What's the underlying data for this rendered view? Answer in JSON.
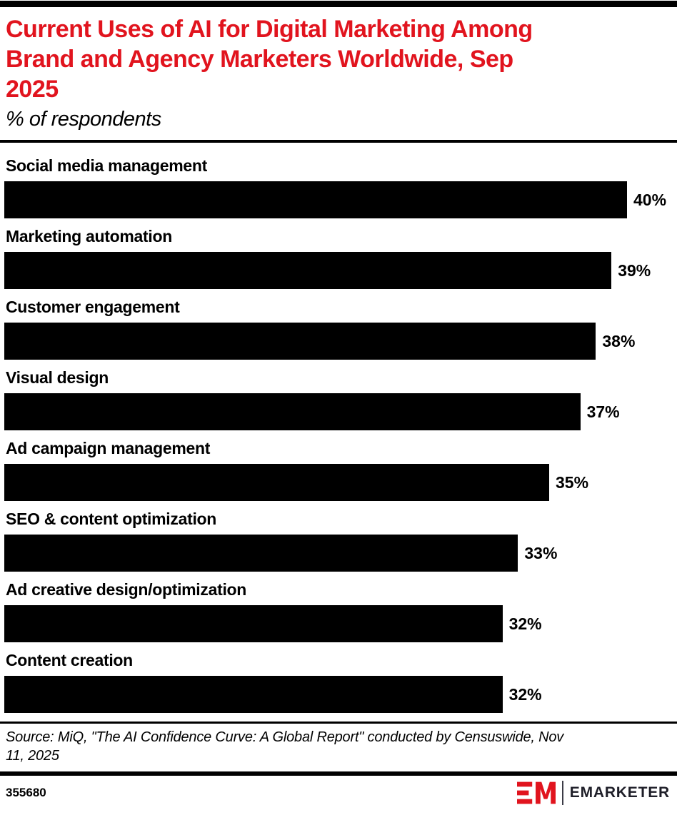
{
  "header": {
    "title": "Current Uses of AI for Digital Marketing Among Brand and Agency Marketers Worldwide, Sep 2025",
    "title_lines": [
      "Current Uses of AI for Digital Marketing Among",
      "Brand and Agency Marketers Worldwide, Sep",
      "2025"
    ],
    "subtitle": "% of respondents"
  },
  "chart_data": {
    "type": "bar",
    "orientation": "horizontal",
    "title": "Current Uses of AI for Digital Marketing Among Brand and Agency Marketers Worldwide, Sep 2025",
    "subtitle": "% of respondents",
    "unit": "%",
    "categories": [
      "Social media management",
      "Marketing automation",
      "Customer engagement",
      "Visual design",
      "Ad campaign management",
      "SEO & content optimization",
      "Ad creative design/optimization",
      "Content creation"
    ],
    "values": [
      40,
      39,
      38,
      37,
      35,
      33,
      32,
      32
    ],
    "value_labels": [
      "40%",
      "39%",
      "38%",
      "37%",
      "35%",
      "33%",
      "32%",
      "32%"
    ],
    "xlim": [
      0,
      43
    ],
    "grid": false,
    "legend": false,
    "bar_color": "#000000"
  },
  "footer": {
    "source": "Source: MiQ, \"The AI Confidence Curve: A Global Report\" conducted by Censuswide, Nov 11, 2025",
    "source_lines": [
      "Source: MiQ, \"The AI Confidence Curve: A Global Report\" conducted by Censuswide, Nov",
      "11, 2025"
    ],
    "chart_id": "355680",
    "logo": {
      "monogram": "EM",
      "wordmark": "EMARKETER"
    }
  },
  "colors": {
    "accent_red": "#e1141e",
    "bar": "#000000",
    "wordmark": "#1e1e28"
  }
}
